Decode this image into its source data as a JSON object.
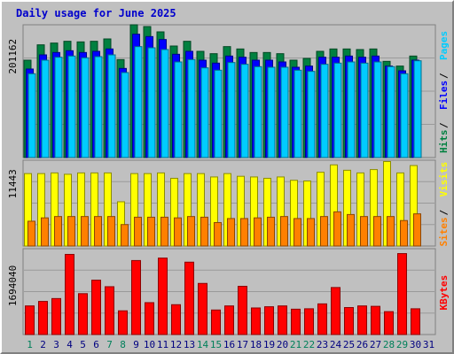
{
  "chart_data": {
    "title": "Daily usage for June 2025",
    "x_labels": [
      "1",
      "2",
      "3",
      "4",
      "5",
      "6",
      "7",
      "8",
      "9",
      "10",
      "11",
      "12",
      "13",
      "14",
      "15",
      "16",
      "17",
      "18",
      "19",
      "20",
      "21",
      "22",
      "23",
      "24",
      "25",
      "26",
      "27",
      "28",
      "29",
      "30",
      "31"
    ],
    "weekend_days": [
      1,
      7,
      8,
      14,
      15,
      21,
      22,
      28,
      29
    ],
    "panels": [
      {
        "type": "bar",
        "y_tick": "201162",
        "y_max": 225000,
        "series": [
          {
            "name": "Hits",
            "color": "#008040",
            "values": [
              165000,
              191000,
              194000,
              197000,
              196000,
              197000,
              201000,
              166000,
              225000,
              222000,
              213000,
              189000,
              197000,
              180000,
              176000,
              188000,
              184000,
              178000,
              178000,
              176000,
              165000,
              168000,
              180000,
              184000,
              184000,
              183000,
              184000,
              163000,
              155000,
              172000,
              0
            ]
          },
          {
            "name": "Files",
            "color": "#0000ff",
            "values": [
              150000,
              174000,
              178000,
              181000,
              178000,
              180000,
              184000,
              151000,
              209000,
              205000,
              200000,
              175000,
              180000,
              165000,
              160000,
              172000,
              170000,
              165000,
              165000,
              162000,
              153000,
              155000,
              170000,
              170000,
              172000,
              170000,
              172000,
              155000,
              147000,
              165000,
              0
            ]
          },
          {
            "name": "Pages",
            "color": "#00ccff",
            "values": [
              142000,
              165000,
              170000,
              172000,
              169000,
              171000,
              174000,
              144000,
              188000,
              186000,
              183000,
              162000,
              166000,
              152000,
              148000,
              161000,
              158000,
              154000,
              153000,
              153000,
              148000,
              146000,
              158000,
              160000,
              162000,
              160000,
              162000,
              154000,
              142000,
              164000,
              0
            ]
          }
        ],
        "axis_labels": [
          {
            "text": "Hits",
            "color": "#008040"
          },
          {
            "text": "Files",
            "color": "#0000ff"
          },
          {
            "text": "Pages",
            "color": "#00ccff"
          }
        ]
      },
      {
        "type": "bar",
        "y_tick": "11443",
        "y_max": 12800,
        "series": [
          {
            "name": "Visits",
            "color": "#ffff00",
            "values": [
              10800,
              10800,
              10900,
              10700,
              10900,
              10900,
              10900,
              6600,
              10800,
              10800,
              10900,
              10100,
              10800,
              10800,
              10300,
              10800,
              10400,
              10300,
              10100,
              10300,
              9800,
              9700,
              11000,
              12100,
              11300,
              10900,
              11400,
              12600,
              10900,
              12000,
              0
            ]
          },
          {
            "name": "Sites",
            "color": "#ff8000",
            "values": [
              3700,
              4200,
              4400,
              4400,
              4400,
              4400,
              4400,
              3200,
              4300,
              4300,
              4300,
              4200,
              4400,
              4300,
              3500,
              4100,
              4100,
              4200,
              4300,
              4400,
              4100,
              4100,
              4400,
              5100,
              4700,
              4400,
              4400,
              4400,
              3800,
              4800,
              0
            ]
          }
        ],
        "axis_labels": [
          {
            "text": "Sites",
            "color": "#ff8000"
          },
          {
            "text": "Visits",
            "color": "#ffff00"
          }
        ]
      },
      {
        "type": "bar",
        "y_tick": "1694040",
        "y_max": 2100000,
        "series": [
          {
            "name": "KBytes",
            "color": "#ff0000",
            "values": [
              700000,
              810000,
              880000,
              1960000,
              1000000,
              1330000,
              1170000,
              580000,
              1810000,
              780000,
              1870000,
              730000,
              1770000,
              1250000,
              600000,
              700000,
              1180000,
              650000,
              680000,
              700000,
              620000,
              630000,
              750000,
              1150000,
              660000,
              700000,
              690000,
              560000,
              1980000,
              630000,
              0
            ]
          }
        ],
        "axis_labels": [
          {
            "text": "KBytes",
            "color": "#ff0000"
          }
        ]
      }
    ]
  }
}
